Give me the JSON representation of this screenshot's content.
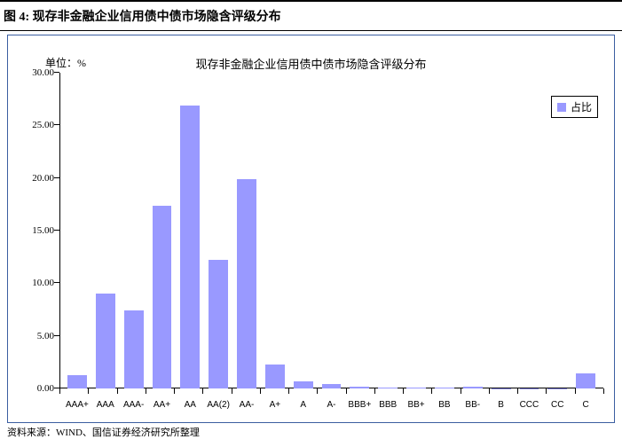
{
  "header": {
    "title": "图 4: 现存非金融企业信用债中债市场隐含评级分布"
  },
  "chart": {
    "type": "bar",
    "unit_label": "单位：%",
    "title": "现存非金融企业信用债中债市场隐含评级分布",
    "legend": {
      "label": "占比",
      "swatch_color": "#9999ff"
    },
    "bar_color": "#9999ff",
    "axis_color": "#000000",
    "background_color": "#ffffff",
    "border_color": "#3b5ea0",
    "ylim": [
      0,
      30
    ],
    "ytick_step": 5,
    "yticks": [
      "0.00",
      "5.00",
      "10.00",
      "15.00",
      "20.00",
      "25.00",
      "30.00"
    ],
    "categories": [
      "AAA+",
      "AAA",
      "AAA-",
      "AA+",
      "AA",
      "AA(2)",
      "AA-",
      "A+",
      "A",
      "A-",
      "BBB+",
      "BBB",
      "BB+",
      "BB",
      "BB-",
      "B",
      "CCC",
      "CC",
      "C"
    ],
    "values": [
      1.3,
      9.0,
      7.4,
      17.4,
      26.9,
      12.2,
      19.9,
      2.3,
      0.7,
      0.4,
      0.2,
      0.1,
      0.1,
      0.05,
      0.2,
      0.03,
      0.02,
      0.02,
      1.4
    ],
    "label_fontsize": 11,
    "category_fontsize": 10,
    "title_fontsize": 13,
    "bar_width": 0.6
  },
  "source": {
    "text": "资料来源：WIND、国信证券经济研究所整理"
  }
}
